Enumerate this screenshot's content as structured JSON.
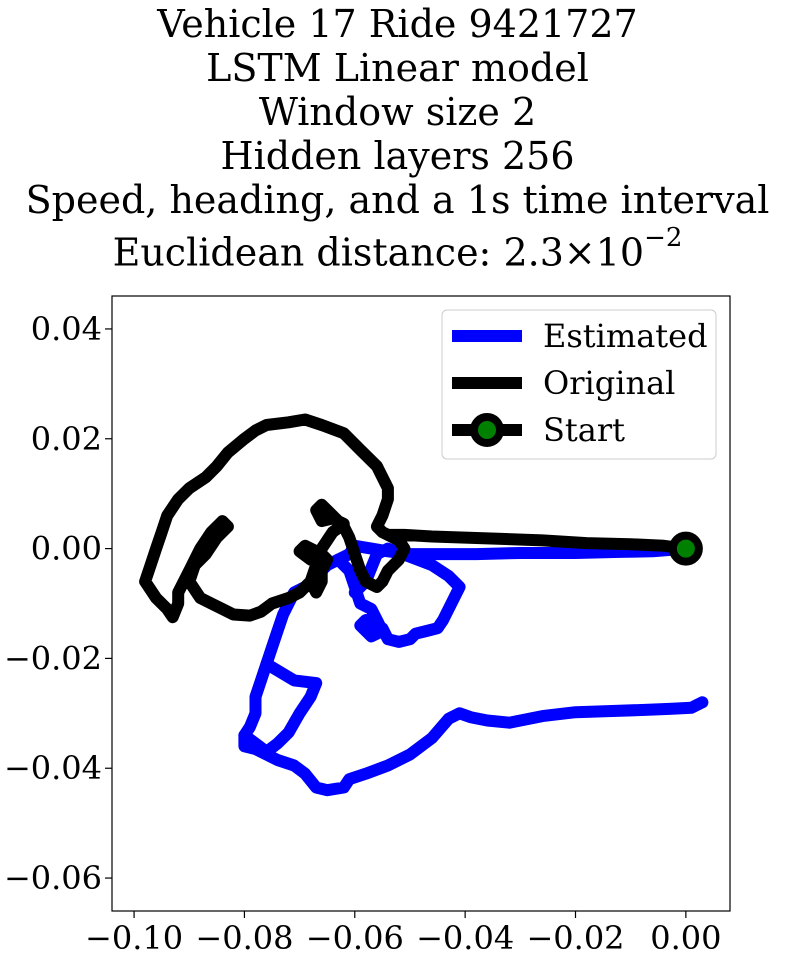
{
  "title_lines": [
    "Vehicle 17 Ride 9421727",
    "LSTM Linear model",
    "Window size 2",
    "Hidden layers 256",
    "Speed, heading, and a 1s time interval"
  ],
  "title_metric_prefix": "Euclidean distance: ",
  "title_metric_mantissa": "2.3",
  "title_metric_times": "×",
  "title_metric_base": "10",
  "title_metric_exponent": "−2",
  "chart_data": {
    "type": "line",
    "xlim": [
      -0.104,
      0.008
    ],
    "ylim": [
      -0.066,
      0.046
    ],
    "xticks": [
      -0.1,
      -0.08,
      -0.06,
      -0.04,
      -0.02,
      0.0
    ],
    "xtick_labels": [
      "−0.10",
      "−0.08",
      "−0.06",
      "−0.04",
      "−0.02",
      "0.00"
    ],
    "yticks": [
      -0.06,
      -0.04,
      -0.02,
      0.0,
      0.02,
      0.04
    ],
    "ytick_labels": [
      "−0.06",
      "−0.04",
      "−0.02",
      "0.00",
      "0.02",
      "0.04"
    ],
    "grid": false,
    "legend_position": "top-right",
    "series": [
      {
        "name": "Estimated",
        "color": "#0000ff",
        "points": [
          [
            0.003,
            -0.028
          ],
          [
            0.001,
            -0.029
          ],
          [
            -0.003,
            -0.0292
          ],
          [
            -0.008,
            -0.0294
          ],
          [
            -0.014,
            -0.0296
          ],
          [
            -0.02,
            -0.0298
          ],
          [
            -0.026,
            -0.0305
          ],
          [
            -0.031,
            -0.0315
          ],
          [
            -0.032,
            -0.0317
          ],
          [
            -0.036,
            -0.0313
          ],
          [
            -0.039,
            -0.0307
          ],
          [
            -0.041,
            -0.03
          ],
          [
            -0.043,
            -0.031
          ],
          [
            -0.046,
            -0.0345
          ],
          [
            -0.05,
            -0.0375
          ],
          [
            -0.054,
            -0.0395
          ],
          [
            -0.058,
            -0.041
          ],
          [
            -0.061,
            -0.042
          ],
          [
            -0.062,
            -0.0435
          ],
          [
            -0.065,
            -0.044
          ],
          [
            -0.067,
            -0.0435
          ],
          [
            -0.069,
            -0.041
          ],
          [
            -0.071,
            -0.0395
          ],
          [
            -0.074,
            -0.0385
          ],
          [
            -0.076,
            -0.0375
          ],
          [
            -0.078,
            -0.0365
          ],
          [
            -0.08,
            -0.036
          ],
          [
            -0.08,
            -0.034
          ],
          [
            -0.079,
            -0.0325
          ],
          [
            -0.078,
            -0.03
          ],
          [
            -0.078,
            -0.027
          ],
          [
            -0.077,
            -0.024
          ],
          [
            -0.076,
            -0.021
          ],
          [
            -0.075,
            -0.018
          ],
          [
            -0.074,
            -0.015
          ],
          [
            -0.073,
            -0.012
          ],
          [
            -0.072,
            -0.01
          ],
          [
            -0.071,
            -0.008
          ],
          [
            -0.069,
            -0.007
          ],
          [
            -0.067,
            -0.005
          ],
          [
            -0.065,
            -0.003
          ],
          [
            -0.063,
            -0.002
          ],
          [
            -0.061,
            -0.001
          ],
          [
            -0.06,
            0.0005
          ],
          [
            -0.057,
            0.0
          ],
          [
            -0.054,
            -0.0005
          ],
          [
            -0.05,
            -0.001
          ],
          [
            -0.044,
            -0.001
          ],
          [
            -0.038,
            -0.001
          ],
          [
            -0.03,
            -0.0008
          ],
          [
            -0.02,
            -0.0008
          ],
          [
            -0.012,
            -0.0006
          ],
          [
            -0.006,
            -0.0005
          ],
          [
            0.0,
            0.0
          ]
        ],
        "branches": [
          [
            [
              -0.08,
              -0.034
            ],
            [
              -0.078,
              -0.0355
            ],
            [
              -0.076,
              -0.037
            ],
            [
              -0.074,
              -0.0355
            ],
            [
              -0.072,
              -0.0335
            ],
            [
              -0.07,
              -0.03
            ],
            [
              -0.068,
              -0.027
            ],
            [
              -0.067,
              -0.0245
            ],
            [
              -0.071,
              -0.024
            ],
            [
              -0.076,
              -0.021
            ]
          ],
          [
            [
              -0.063,
              -0.002
            ],
            [
              -0.061,
              -0.004
            ],
            [
              -0.06,
              -0.007
            ],
            [
              -0.059,
              -0.01
            ],
            [
              -0.057,
              -0.011
            ],
            [
              -0.056,
              -0.013
            ],
            [
              -0.055,
              -0.015
            ],
            [
              -0.057,
              -0.016
            ],
            [
              -0.059,
              -0.014
            ],
            [
              -0.058,
              -0.013
            ],
            [
              -0.055,
              -0.0145
            ],
            [
              -0.054,
              -0.0165
            ],
            [
              -0.052,
              -0.017
            ],
            [
              -0.05,
              -0.0165
            ],
            [
              -0.049,
              -0.0155
            ],
            [
              -0.047,
              -0.015
            ],
            [
              -0.045,
              -0.0145
            ],
            [
              -0.044,
              -0.013
            ],
            [
              -0.043,
              -0.011
            ],
            [
              -0.042,
              -0.009
            ],
            [
              -0.041,
              -0.007
            ],
            [
              -0.043,
              -0.005
            ],
            [
              -0.046,
              -0.003
            ],
            [
              -0.05,
              -0.0015
            ],
            [
              -0.054,
              0.0
            ],
            [
              -0.056,
              -0.001
            ],
            [
              -0.058,
              -0.006
            ],
            [
              -0.06,
              -0.008
            ]
          ]
        ]
      },
      {
        "name": "Original",
        "color": "#000000",
        "points": [
          [
            0.0,
            0.0
          ],
          [
            -0.004,
            0.0005
          ],
          [
            -0.01,
            0.0008
          ],
          [
            -0.018,
            0.001
          ],
          [
            -0.026,
            0.0015
          ],
          [
            -0.034,
            0.0018
          ],
          [
            -0.04,
            0.002
          ],
          [
            -0.046,
            0.0022
          ],
          [
            -0.051,
            0.0025
          ],
          [
            -0.054,
            0.0025
          ],
          [
            -0.055,
            0.003
          ],
          [
            -0.056,
            0.004
          ],
          [
            -0.055,
            0.006
          ],
          [
            -0.054,
            0.009
          ],
          [
            -0.054,
            0.011
          ],
          [
            -0.056,
            0.015
          ],
          [
            -0.059,
            0.018
          ],
          [
            -0.062,
            0.021
          ],
          [
            -0.066,
            0.0225
          ],
          [
            -0.069,
            0.0235
          ],
          [
            -0.072,
            0.023
          ],
          [
            -0.076,
            0.0225
          ],
          [
            -0.078,
            0.0215
          ],
          [
            -0.08,
            0.02
          ],
          [
            -0.083,
            0.0175
          ],
          [
            -0.085,
            0.015
          ],
          [
            -0.087,
            0.013
          ],
          [
            -0.09,
            0.011
          ],
          [
            -0.092,
            0.009
          ],
          [
            -0.094,
            0.006
          ],
          [
            -0.095,
            0.003
          ],
          [
            -0.096,
            0.0
          ],
          [
            -0.097,
            -0.003
          ],
          [
            -0.098,
            -0.006
          ],
          [
            -0.096,
            -0.009
          ],
          [
            -0.094,
            -0.011
          ],
          [
            -0.093,
            -0.0125
          ],
          [
            -0.092,
            -0.01
          ],
          [
            -0.092,
            -0.008
          ],
          [
            -0.09,
            -0.004
          ],
          [
            -0.088,
            0.0
          ],
          [
            -0.086,
            0.003
          ],
          [
            -0.084,
            0.005
          ],
          [
            -0.083,
            0.004
          ],
          [
            -0.085,
            0.002
          ],
          [
            -0.087,
            -0.001
          ],
          [
            -0.089,
            -0.003
          ],
          [
            -0.09,
            -0.006
          ],
          [
            -0.088,
            -0.009
          ],
          [
            -0.086,
            -0.01
          ],
          [
            -0.084,
            -0.011
          ],
          [
            -0.082,
            -0.012
          ],
          [
            -0.079,
            -0.0122
          ],
          [
            -0.077,
            -0.0115
          ],
          [
            -0.075,
            -0.01
          ],
          [
            -0.072,
            -0.009
          ],
          [
            -0.07,
            -0.008
          ],
          [
            -0.068,
            -0.006
          ],
          [
            -0.066,
            -0.004
          ],
          [
            -0.065,
            -0.002
          ],
          [
            -0.066,
            -0.001
          ],
          [
            -0.068,
            -0.002
          ],
          [
            -0.07,
            -0.0005
          ],
          [
            -0.069,
            0.0005
          ],
          [
            -0.067,
            -0.0005
          ],
          [
            -0.066,
            -0.003
          ],
          [
            -0.066,
            -0.006
          ],
          [
            -0.067,
            -0.008
          ],
          [
            -0.068,
            -0.006
          ],
          [
            -0.067,
            -0.003
          ],
          [
            -0.066,
            0.0
          ],
          [
            -0.064,
            0.003
          ],
          [
            -0.062,
            0.0045
          ],
          [
            -0.064,
            0.0055
          ],
          [
            -0.066,
            0.005
          ],
          [
            -0.067,
            0.007
          ],
          [
            -0.066,
            0.008
          ],
          [
            -0.064,
            0.006
          ],
          [
            -0.062,
            0.004
          ],
          [
            -0.061,
            0.002
          ],
          [
            -0.06,
            -0.001
          ],
          [
            -0.059,
            -0.004
          ],
          [
            -0.058,
            -0.006
          ],
          [
            -0.056,
            -0.007
          ],
          [
            -0.055,
            -0.006
          ],
          [
            -0.054,
            -0.004
          ],
          [
            -0.052,
            -0.002
          ],
          [
            -0.051,
            0.0
          ],
          [
            -0.052,
            0.0015
          ],
          [
            -0.054,
            0.0025
          ]
        ]
      }
    ],
    "start": {
      "name": "Start",
      "point": [
        0.0,
        0.0
      ],
      "marker_color": "#008000",
      "edge_color": "#000000"
    }
  }
}
